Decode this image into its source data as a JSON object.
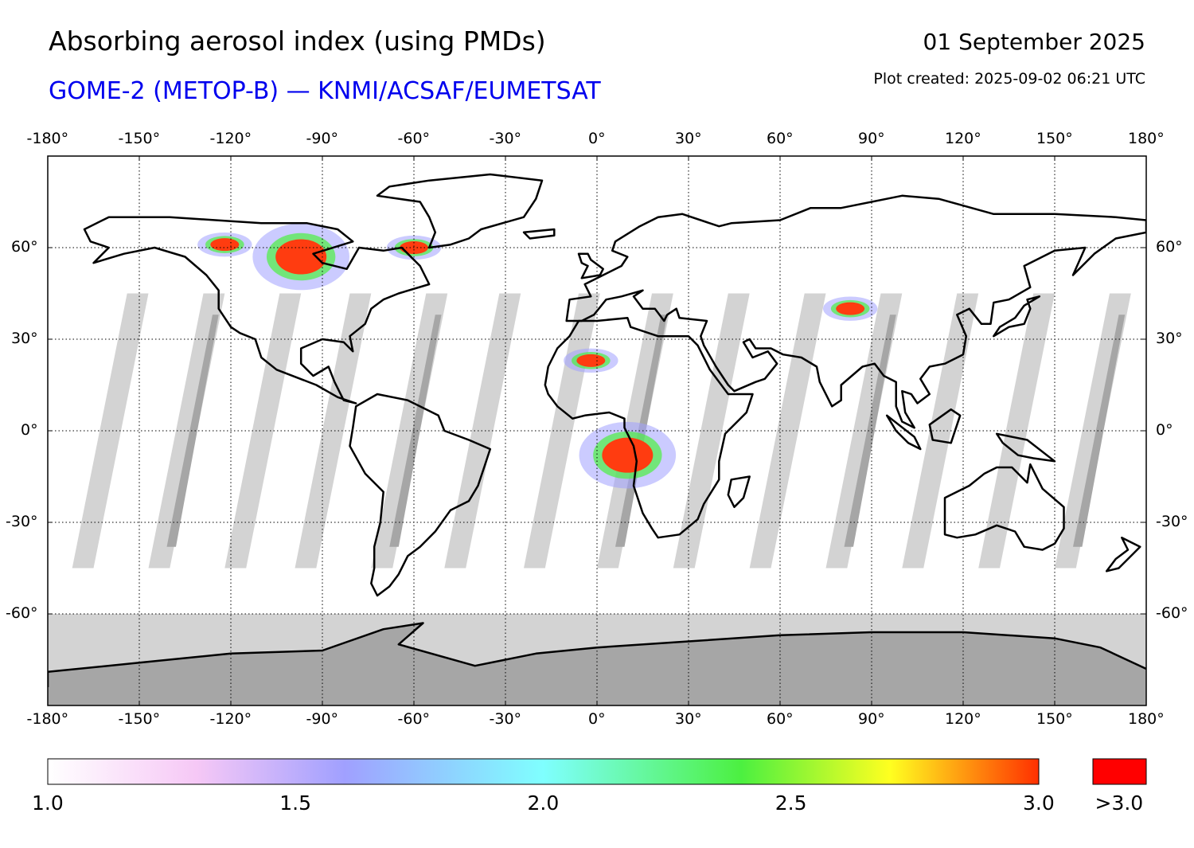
{
  "header": {
    "title": "Absorbing aerosol index (using PMDs)",
    "subtitle": "GOME-2 (METOP-B) — KNMI/ACSAF/EUMETSAT",
    "date": "01 September 2025",
    "plot_created": "Plot created: 2025-09-02 06:21 UTC"
  },
  "map": {
    "lon_ticks": [
      "-180°",
      "-150°",
      "-120°",
      "-90°",
      "-60°",
      "-30°",
      "0°",
      "30°",
      "60°",
      "90°",
      "120°",
      "150°",
      "180°"
    ],
    "lat_ticks": [
      "60°",
      "30°",
      "0°",
      "-30°",
      "-60°"
    ],
    "lon_values": [
      -180,
      -150,
      -120,
      -90,
      -60,
      -30,
      0,
      30,
      60,
      90,
      120,
      150,
      180
    ],
    "lat_values": [
      60,
      30,
      0,
      -30,
      -60
    ],
    "lat_range": [
      -90,
      90
    ],
    "lon_range": [
      -180,
      180
    ],
    "grid": true,
    "colors": {
      "no_data": "#d3d3d3",
      "no_data_dark": "#a6a6a6",
      "coast": "#000000",
      "high": "#ff3c10"
    }
  },
  "colorbar": {
    "tick_labels": [
      "1.0",
      "1.5",
      "2.0",
      "2.5",
      "3.0"
    ],
    "tick_values": [
      1.0,
      1.5,
      2.0,
      2.5,
      3.0
    ],
    "overflow_label": ">3.0",
    "overflow_color": "#ff0000",
    "stops": [
      {
        "value": 1.0,
        "color": "#ffffff"
      },
      {
        "value": 1.3,
        "color": "#f6c8f6"
      },
      {
        "value": 1.6,
        "color": "#a0a0ff"
      },
      {
        "value": 2.0,
        "color": "#7fffff"
      },
      {
        "value": 2.4,
        "color": "#4cf040"
      },
      {
        "value": 2.7,
        "color": "#ffff20"
      },
      {
        "value": 3.0,
        "color": "#ff3000"
      }
    ]
  },
  "aerosol_plumes": [
    {
      "region": "central-africa",
      "lon": 10,
      "lat": -8,
      "level": ">3.0"
    },
    {
      "region": "west-africa",
      "lon": -2,
      "lat": 23,
      "level": "3.0"
    },
    {
      "region": "canada-central",
      "lon": -97,
      "lat": 57,
      "level": ">3.0"
    },
    {
      "region": "canada-west",
      "lon": -122,
      "lat": 61,
      "level": "3.0"
    },
    {
      "region": "canada-east",
      "lon": -60,
      "lat": 60,
      "level": "3.0"
    },
    {
      "region": "central-asia",
      "lon": 83,
      "lat": 40,
      "level": "3.0"
    }
  ]
}
